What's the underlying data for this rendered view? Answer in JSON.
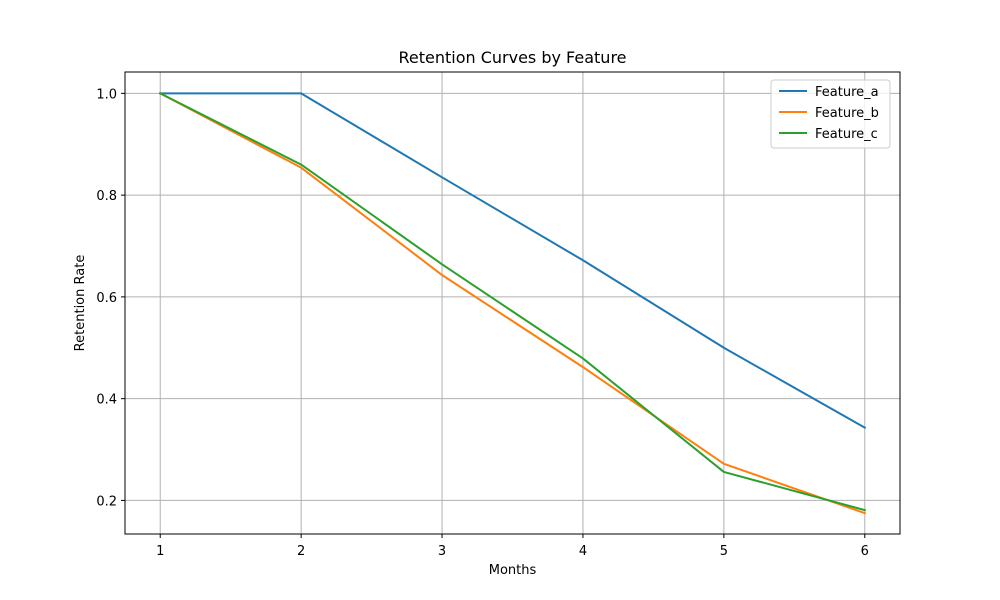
{
  "chart_data": {
    "type": "line",
    "title": "Retention Curves by Feature",
    "xlabel": "Months",
    "ylabel": "Retention Rate",
    "x": [
      1,
      2,
      3,
      4,
      5,
      6
    ],
    "xticks": [
      "1",
      "2",
      "3",
      "4",
      "5",
      "6"
    ],
    "yticks": [
      "0.2",
      "0.4",
      "0.6",
      "0.8",
      "1.0"
    ],
    "ytick_values": [
      0.2,
      0.4,
      0.6,
      0.8,
      1.0
    ],
    "xlim": [
      0.75,
      6.25
    ],
    "ylim": [
      0.134,
      1.042
    ],
    "grid": true,
    "legend_position": "top-right",
    "series": [
      {
        "name": "Feature_a",
        "color": "#1f77b4",
        "values": [
          1.0,
          1.0,
          0.835,
          0.672,
          0.5,
          0.343
        ]
      },
      {
        "name": "Feature_b",
        "color": "#ff7f0e",
        "values": [
          1.0,
          0.854,
          0.643,
          0.462,
          0.272,
          0.175
        ]
      },
      {
        "name": "Feature_c",
        "color": "#2ca02c",
        "values": [
          1.0,
          0.86,
          0.664,
          0.479,
          0.256,
          0.181
        ]
      }
    ]
  }
}
